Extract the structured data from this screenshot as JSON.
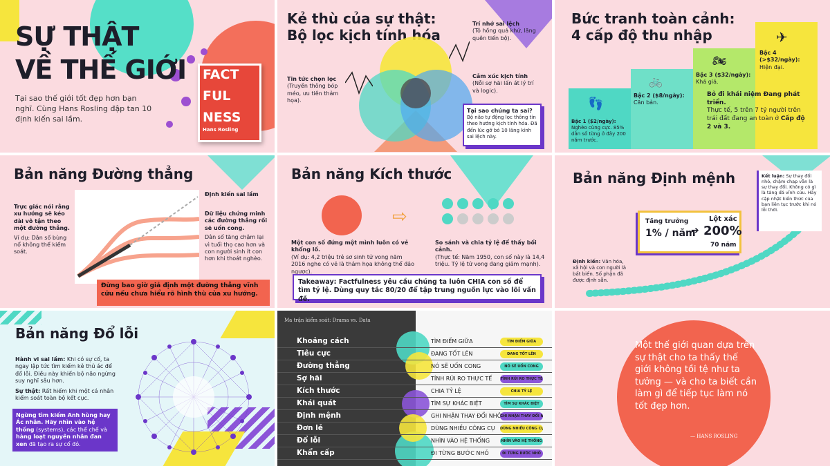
{
  "s1": {
    "title_line1": "SỰ THẬT",
    "title_line2": "VỀ THẾ GIỚI",
    "subtitle": "Tại sao thế giới tốt đẹp hơn bạn nghĩ. Cùng Hans Rosling đập tan 10 định kiến sai lầm.",
    "book_title_1": "FACT",
    "book_title_2": "FUL",
    "book_title_3": "NESS",
    "book_author": "Hans Rosling"
  },
  "s2": {
    "title_line1": "Kẻ thù của sự thật:",
    "title_line2": "Bộ lọc kịch tính hóa",
    "news_head": "Tin tức chọn lọc",
    "news_body": "(Truyền thông bóp méo, ưu tiên thảm họa).",
    "memory_head": "Trí nhớ sai lệch",
    "memory_body": "(Tô hồng quá khứ, lãng quên tiến bộ).",
    "emotion_head": "Cảm xúc kịch tính",
    "emotion_body": "(Nỗi sợ hãi lấn át lý trí và logic).",
    "why_head": "Tại sao chúng ta sai?",
    "why_body": "Bộ não tự động lọc thông tin theo hướng kịch tính hóa. Đã đến lúc gỡ bỏ 10 lăng kính sai lệch này."
  },
  "s3": {
    "title_line1": "Bức tranh toàn cảnh:",
    "title_line2": "4 cấp độ thu nhập",
    "l4_head": "Bậc 4 (>$32/ngày):",
    "l4_body": "Hiện đại.",
    "l3_head": "Bậc 3 ($32/ngày):",
    "l3_body": "Khá giả.",
    "l2_head": "Bậc 2 ($8/ngày):",
    "l2_body": "Căn bản.",
    "l1_head": "Bậc 1 ($2/ngày):",
    "l1_body": "Nghèo cùng cực. 85% dân số từng ở đây 200 năm trước.",
    "note_head": "Bỏ đi khái niệm Đang phát triển.",
    "note_body": "Thực tế, 5 trên 7 tỷ người trên trái đất đang an toàn ở",
    "note_bold": "Cấp độ 2 và 3."
  },
  "s4": {
    "title": "Bản năng Đường thẳng",
    "left_head": "Trực giác nói rằng xu hướng sẽ kéo dài vô tận theo một đường thẳng.",
    "left_body": "Ví dụ: Dân số bùng nổ không thể kiểm soát.",
    "bias_label": "Định kiến sai lầm",
    "data_head": "Dữ liệu chứng minh các đường thẳng rồi sẽ uốn cong.",
    "data_body": "Dân số tăng chậm lại vì tuổi thọ cao hơn và con người sinh ít con hơn khi thoát nghèo.",
    "banner": "Đừng bao giờ giả định một đường thẳng vĩnh cửu nếu chưa hiểu rõ hình thù của xu hướng."
  },
  "s5": {
    "title": "Bản năng Kích thước",
    "left_head": "Một con số đứng một mình luôn có vẻ khổng lồ.",
    "left_body": "(Ví dụ: 4,2 triệu trẻ sơ sinh tử vong năm 2016 nghe có vẻ là thảm họa không thể đảo ngược).",
    "right_head": "So sánh và chia tỷ lệ để thấy bối cảnh.",
    "right_body": "(Thực tế: Năm 1950, con số này là 14,4 triệu. Tỷ lệ tử vong đang giảm mạnh).",
    "takeaway": "Takeaway: Factfulness yêu cầu chúng ta luôn CHIA con số để tìm tỷ lệ. Dùng quy tắc 80/20 để tập trung nguồn lực vào lõi vấn đề."
  },
  "s6": {
    "title": "Bản năng Định mệnh",
    "growth_label": "Tăng trưởng",
    "growth_value": "1% / năm",
    "transform_label": "Lột xác",
    "transform_value": "200%",
    "transform_years": "70 năm",
    "left_head": "Định kiến:",
    "left_body": "Văn hóa, xã hội và con người là bất biến. Số phận đã được định sẵn.",
    "right_head": "Kết luận:",
    "right_body": "Sự thay đổi nhỏ, chậm chạp vẫn là sự thay đổi. Không có gì là tảng đá vĩnh cửu. Hãy cập nhật kiến thức của bạn liên tục trước khi nó lỗi thời."
  },
  "s7": {
    "title": "Bản năng Đổ lỗi",
    "p1_head": "Hành vi sai lầm:",
    "p1_body": "Khi có sự cố, ta ngay lập tức tìm kiếm kẻ thủ ác để đổ lỗi. Điều này khiến bộ não ngừng suy nghĩ sâu hơn.",
    "p2_head": "Sự thật:",
    "p2_body": "Rất hiếm khi một cá nhân kiểm soát toàn bộ kết cục.",
    "p3_head": "Ngừng tìm kiếm Anh hùng hay Ác nhân. Hãy nhìn vào hệ thống",
    "p3_mid": "(systems), các thể chế và",
    "p3_tail": "hàng loạt nguyên nhân đan xen",
    "p3_end": "đã tạo ra sự cố đó."
  },
  "s8": {
    "header": "Ma trận kiểm soát: Drama vs. Data",
    "rows": [
      {
        "instinct": "Khoảng cách",
        "action": "TÌM ĐIỂM GIỮA",
        "tag": "TÌM ĐIỂM GIỮA"
      },
      {
        "instinct": "Tiêu cực",
        "action": "ĐANG TỐT LÊN",
        "tag": "ĐANG TỐT LÊN"
      },
      {
        "instinct": "Đường thẳng",
        "action": "NÓ SẼ UỐN CONG",
        "tag": "NÓ SẼ UỐN CONG"
      },
      {
        "instinct": "Sợ hãi",
        "action": "TÍNH RỦI RO THỰC TẾ",
        "tag": "TÍNH RỦI RO THỰC TẾ"
      },
      {
        "instinct": "Kích thước",
        "action": "CHIA TỶ LỆ",
        "tag": "CHIA TỶ LỆ"
      },
      {
        "instinct": "Khái quát",
        "action": "TÌM SỰ KHÁC BIỆT",
        "tag": "TÌM SỰ KHÁC BIỆT"
      },
      {
        "instinct": "Định mệnh",
        "action": "GHI NHẬN THAY ĐỔI NHỎ",
        "tag": "GHI NHẬN THAY ĐỔI NHỎ"
      },
      {
        "instinct": "Đơn lẻ",
        "action": "DÙNG NHIỀU CÔNG CỤ",
        "tag": "DÙNG NHIỀU CÔNG CỤ"
      },
      {
        "instinct": "Đổ lỗi",
        "action": "NHÌN VÀO HỆ THỐNG",
        "tag": "NHÌN VÀO HỆ THỐNG"
      },
      {
        "instinct": "Khẩn cấp",
        "action": "ĐI TỪNG BƯỚC NHỎ",
        "tag": "ĐI TỪNG BƯỚC NHỎ"
      }
    ]
  },
  "s9": {
    "quote": "Một thế giới quan dựa trên sự thật cho ta thấy thế giới không tồi tệ như ta tưởng — và cho ta biết cần làm gì để tiếp tục làm nó tốt đẹp hơn.",
    "author": "— HANS ROSLING"
  },
  "colors": {
    "pink_bg": "#fbdbe0",
    "coral": "#f2644f",
    "teal": "#4fd8c4",
    "yellow": "#f6e53d",
    "purple": "#6b36c9",
    "dark": "#3a3a3a"
  }
}
